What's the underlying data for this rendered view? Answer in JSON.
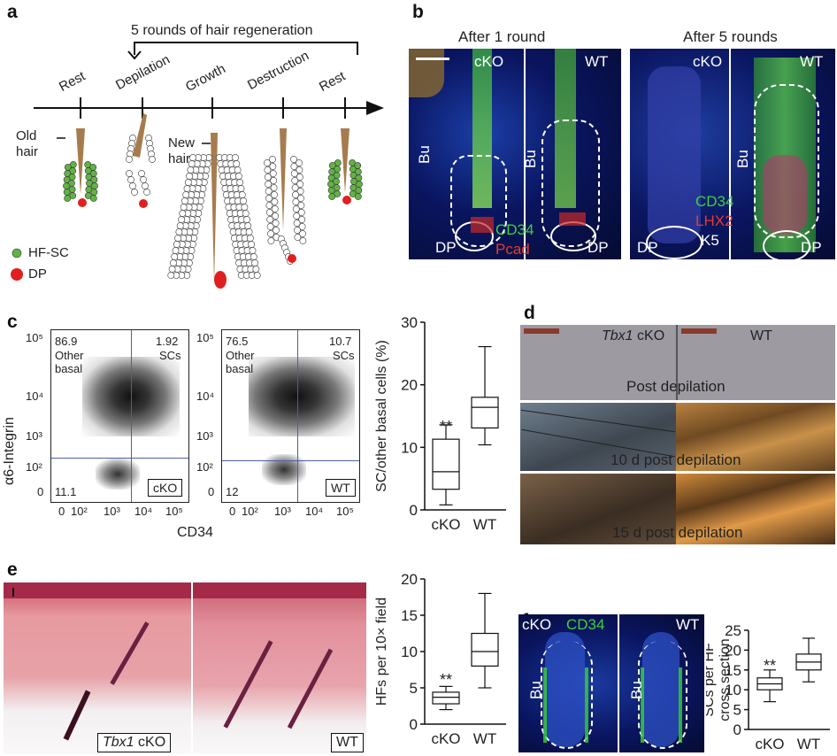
{
  "panel_labels": {
    "a": "a",
    "b": "b",
    "c": "c",
    "d": "d",
    "e": "e",
    "f": "f"
  },
  "panel_a": {
    "bracket_label": "5 rounds of hair regeneration",
    "stages": [
      "Rest",
      "Depilation",
      "Growth",
      "Destruction",
      "Rest"
    ],
    "old_hair": "Old\nhair",
    "new_hair": "New\nhair",
    "legend_hfsc": "HF-SC",
    "legend_dp": "DP",
    "colors": {
      "hfsc": "#62b246",
      "dp": "#e02020",
      "hair": "#a67c4e"
    }
  },
  "panel_b": {
    "title_left": "After 1 round",
    "title_right": "After 5 rounds",
    "cko": "cKO",
    "wt": "WT",
    "bu": "Bu",
    "dp": "DP",
    "cd34": "CD34",
    "pcad": "Pcad",
    "lhx2": "LHX2",
    "k5": "K5"
  },
  "panel_c": {
    "ylabel_flow": "α6-Integrin",
    "xlabel_flow": "CD34",
    "plots": [
      {
        "name": "cKO",
        "q_tl": "86.9",
        "q_tl_label": "Other\nbasal",
        "q_tr": "1.92",
        "q_tr_label": "SCs",
        "q_bl": "11.1"
      },
      {
        "name": "WT",
        "q_tl": "76.5",
        "q_tl_label": "Other\nbasal",
        "q_tr": "10.7",
        "q_tr_label": "SCs",
        "q_bl": "12"
      }
    ],
    "y_ticks": [
      "10⁵",
      "10⁴",
      "10³",
      "10²",
      "0"
    ],
    "x_ticks": [
      "0",
      "10²",
      "10³",
      "10⁴",
      "10⁵"
    ]
  },
  "panel_d": {
    "genotype_left": "Tbx1",
    "genotype_left_suffix": " cKO",
    "genotype_right": "WT",
    "row_labels": [
      "Post depilation",
      "10 d post depilation",
      "15 d post depilation"
    ]
  },
  "panel_e": {
    "genotype_left": "Tbx1",
    "genotype_left_suffix": " cKO",
    "genotype_right": "WT"
  },
  "panel_f": {
    "cko": "cKO",
    "wt": "WT",
    "cd34": "CD34",
    "bu": "Bu"
  },
  "chart_data": [
    {
      "type": "box",
      "ylabel": "SC/other basal cells (%)",
      "categories": [
        "cKO",
        "WT"
      ],
      "ylim": [
        0,
        30
      ],
      "yticks": [
        0,
        10,
        20,
        30
      ],
      "series": [
        {
          "whisker_low": 0.8,
          "q1": 3.3,
          "median": 6.1,
          "q3": 11.3,
          "whisker_high": 13.6
        },
        {
          "whisker_low": 10.4,
          "q1": 13.1,
          "median": 16.4,
          "q3": 18.0,
          "whisker_high": 26.1
        }
      ],
      "annotation": "**",
      "annotation_on": "cKO"
    },
    {
      "type": "box",
      "ylabel": "HFs per 10× field",
      "categories": [
        "cKO",
        "WT"
      ],
      "ylim": [
        0,
        20
      ],
      "yticks": [
        0,
        5,
        10,
        15,
        20
      ],
      "series": [
        {
          "whisker_low": 2.0,
          "q1": 2.8,
          "median": 3.7,
          "q3": 4.4,
          "whisker_high": 5.2
        },
        {
          "whisker_low": 5.0,
          "q1": 8.0,
          "median": 10.0,
          "q3": 12.5,
          "whisker_high": 18.0
        }
      ],
      "annotation": "**",
      "annotation_on": "cKO"
    },
    {
      "type": "box",
      "ylabel": "SCs per HF\ncross section",
      "categories": [
        "cKO",
        "WT"
      ],
      "ylim": [
        0,
        25
      ],
      "yticks": [
        0,
        5,
        10,
        15,
        20,
        25
      ],
      "series": [
        {
          "whisker_low": 7.0,
          "q1": 10.0,
          "median": 11.5,
          "q3": 13.0,
          "whisker_high": 15.0
        },
        {
          "whisker_low": 12.0,
          "q1": 15.0,
          "median": 17.0,
          "q3": 19.0,
          "whisker_high": 23.0
        }
      ],
      "annotation": "**",
      "annotation_on": "cKO"
    }
  ]
}
